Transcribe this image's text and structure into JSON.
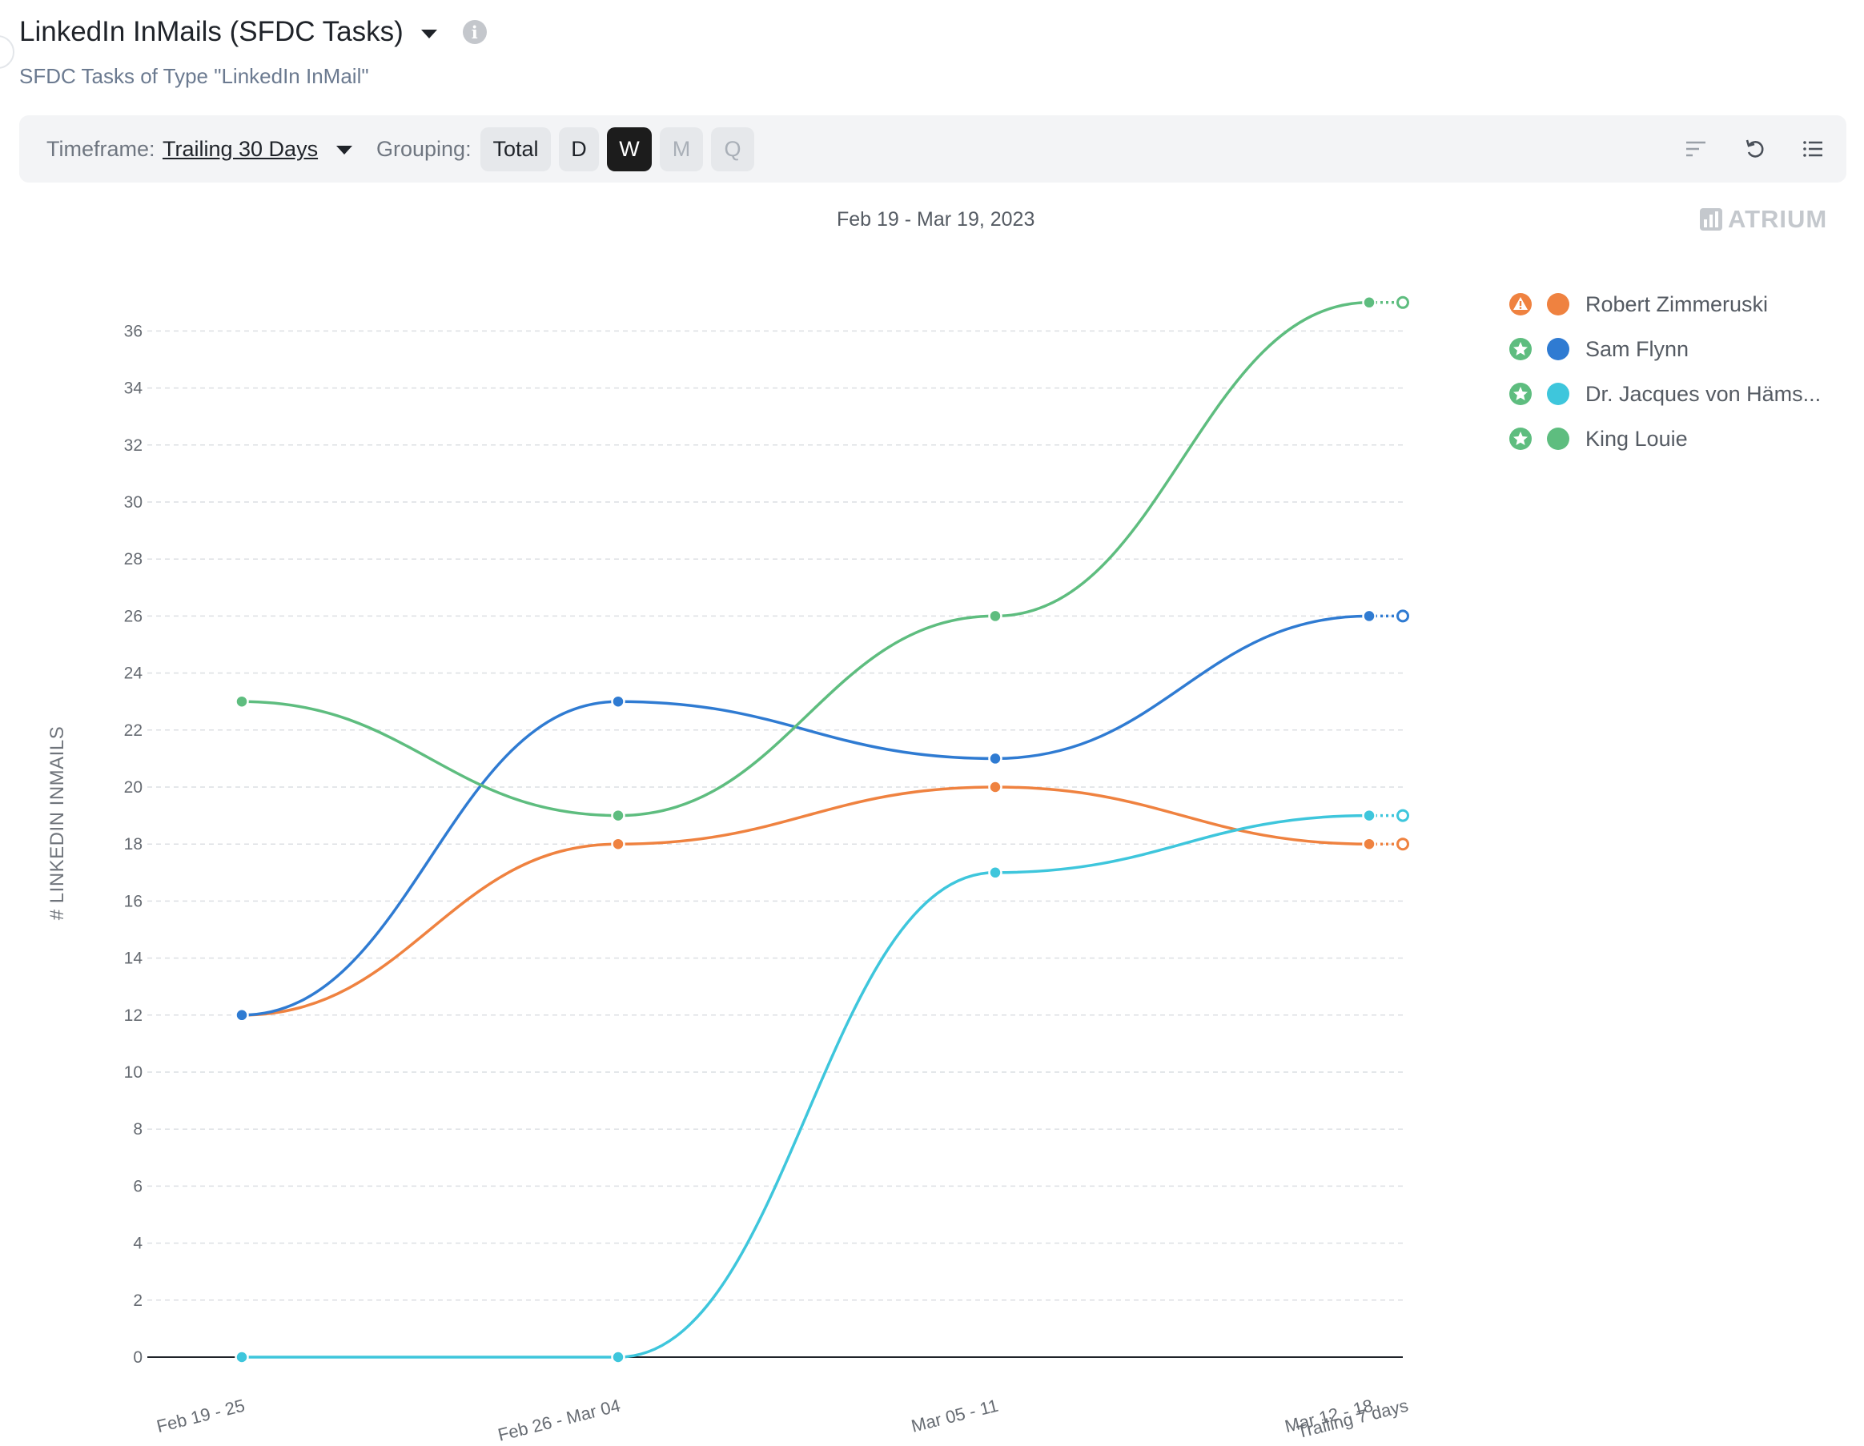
{
  "header": {
    "title": "LinkedIn InMails (SFDC Tasks)",
    "subtitle": "SFDC Tasks of Type \"LinkedIn InMail\""
  },
  "toolbar": {
    "timeframe_label": "Timeframe:",
    "timeframe_value": "Trailing 30 Days",
    "grouping_label": "Grouping:",
    "grouping_options": [
      "Total",
      "D",
      "W",
      "M",
      "Q"
    ],
    "grouping_selected": "W"
  },
  "range_label": "Feb 19 - Mar 19, 2023",
  "brand": "ATRIUM",
  "legend": [
    {
      "name": "Robert Zimmeruski",
      "color": "#ef8240",
      "status": "warning-icon",
      "status_color": "#ef8240"
    },
    {
      "name": "Sam Flynn",
      "color": "#2f7bd2",
      "status": "star-icon",
      "status_color": "#5ebd7f"
    },
    {
      "name": "Dr. Jacques von Häms...",
      "color": "#3ec6dc",
      "status": "star-icon",
      "status_color": "#5ebd7f"
    },
    {
      "name": "King Louie",
      "color": "#5ebd7f",
      "status": "star-icon",
      "status_color": "#5ebd7f"
    }
  ],
  "chart_data": {
    "type": "line",
    "title": "Feb 19 - Mar 19, 2023",
    "ylabel": "# LINKEDIN INMAILS",
    "xlabel": "",
    "categories": [
      "Feb 19 - 25",
      "Feb 26 - Mar 04",
      "Mar 05 - 11",
      "Mar 12 - 18"
    ],
    "trailing_label": "Trailing 7 days",
    "ylim": [
      0,
      37
    ],
    "yticks": [
      0,
      2,
      4,
      6,
      8,
      10,
      12,
      14,
      16,
      18,
      20,
      22,
      24,
      26,
      28,
      30,
      32,
      34,
      36
    ],
    "grid": true,
    "legend_position": "right",
    "series": [
      {
        "name": "Robert Zimmeruski",
        "color": "#ef8240",
        "values": [
          12,
          18,
          20,
          18
        ],
        "trailing": 18
      },
      {
        "name": "Sam Flynn",
        "color": "#2f7bd2",
        "values": [
          12,
          23,
          21,
          26
        ],
        "trailing": 26
      },
      {
        "name": "Dr. Jacques von Häms...",
        "color": "#3ec6dc",
        "values": [
          0,
          0,
          17,
          19
        ],
        "trailing": 19
      },
      {
        "name": "King Louie",
        "color": "#5ebd7f",
        "values": [
          23,
          19,
          26,
          37
        ],
        "trailing": 37
      }
    ]
  }
}
